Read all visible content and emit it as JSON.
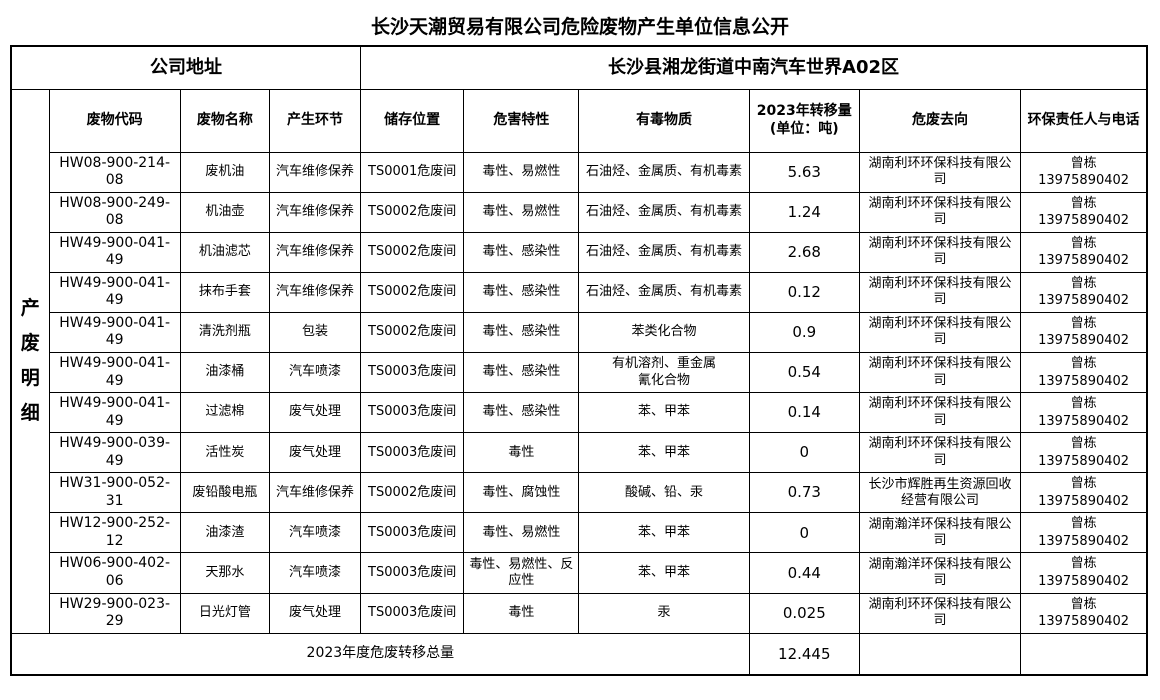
{
  "title": "长沙天潮贸易有限公司危险废物产生单位信息公开",
  "company": {
    "address_label": "公司地址",
    "address_value": "长沙县湘龙街道中南汽车世界A02区"
  },
  "side_label": "产废明细",
  "columns": {
    "code": "废物代码",
    "name": "废物名称",
    "stage": "产生环节",
    "storage": "储存位置",
    "hazard": "危害特性",
    "toxic": "有毒物质",
    "amount": "2023年转移量\n(单位：吨)",
    "destination": "危废去向",
    "contact": "环保责任人与电话"
  },
  "rows": [
    {
      "code": "HW08-900-214-08",
      "name": "废机油",
      "stage": "汽车维修保养",
      "storage": "TS0001危废间",
      "hazard": "毒性、易燃性",
      "toxic": "石油烃、金属质、有机毒素",
      "amount": "5.63",
      "destination": "湖南利环环保科技有限公司",
      "contact_name": "曾栋",
      "contact_phone": "13975890402"
    },
    {
      "code": "HW08-900-249-08",
      "name": "机油壶",
      "stage": "汽车维修保养",
      "storage": "TS0002危废间",
      "hazard": "毒性、易燃性",
      "toxic": "石油烃、金属质、有机毒素",
      "amount": "1.24",
      "destination": "湖南利环环保科技有限公司",
      "contact_name": "曾栋",
      "contact_phone": "13975890402"
    },
    {
      "code": "HW49-900-041-49",
      "name": "机油滤芯",
      "stage": "汽车维修保养",
      "storage": "TS0002危废间",
      "hazard": "毒性、感染性",
      "toxic": "石油烃、金属质、有机毒素",
      "amount": "2.68",
      "destination": "湖南利环环保科技有限公司",
      "contact_name": "曾栋",
      "contact_phone": "13975890402"
    },
    {
      "code": "HW49-900-041-49",
      "name": "抹布手套",
      "stage": "汽车维修保养",
      "storage": "TS0002危废间",
      "hazard": "毒性、感染性",
      "toxic": "石油烃、金属质、有机毒素",
      "amount": "0.12",
      "destination": "湖南利环环保科技有限公司",
      "contact_name": "曾栋",
      "contact_phone": "13975890402"
    },
    {
      "code": "HW49-900-041-49",
      "name": "清洗剂瓶",
      "stage": "包装",
      "storage": "TS0002危废间",
      "hazard": "毒性、感染性",
      "toxic": "苯类化合物",
      "amount": "0.9",
      "destination": "湖南利环环保科技有限公司",
      "contact_name": "曾栋",
      "contact_phone": "13975890402"
    },
    {
      "code": "HW49-900-041-49",
      "name": "油漆桶",
      "stage": "汽车喷漆",
      "storage": "TS0003危废间",
      "hazard": "毒性、感染性",
      "toxic": "有机溶剂、重金属\n氰化合物",
      "amount": "0.54",
      "destination": "湖南利环环保科技有限公司",
      "contact_name": "曾栋",
      "contact_phone": "13975890402"
    },
    {
      "code": "HW49-900-041-49",
      "name": "过滤棉",
      "stage": "废气处理",
      "storage": "TS0003危废间",
      "hazard": "毒性、感染性",
      "toxic": "苯、甲苯",
      "amount": "0.14",
      "destination": "湖南利环环保科技有限公司",
      "contact_name": "曾栋",
      "contact_phone": "13975890402"
    },
    {
      "code": "HW49-900-039-49",
      "name": "活性炭",
      "stage": "废气处理",
      "storage": "TS0003危废间",
      "hazard": "毒性",
      "toxic": "苯、甲苯",
      "amount": "0",
      "destination": "湖南利环环保科技有限公司",
      "contact_name": "曾栋",
      "contact_phone": "13975890402"
    },
    {
      "code": "HW31-900-052-31",
      "name": "废铅酸电瓶",
      "stage": "汽车维修保养",
      "storage": "TS0002危废间",
      "hazard": "毒性、腐蚀性",
      "toxic": "酸碱、铅、汞",
      "amount": "0.73",
      "destination": "长沙市辉胜再生资源回收经营有限公司",
      "contact_name": "曾栋",
      "contact_phone": "13975890402"
    },
    {
      "code": "HW12-900-252-12",
      "name": "油漆渣",
      "stage": "汽车喷漆",
      "storage": "TS0003危废间",
      "hazard": "毒性、易燃性",
      "toxic": "苯、甲苯",
      "amount": "0",
      "destination": "湖南瀚洋环保科技有限公司",
      "contact_name": "曾栋",
      "contact_phone": "13975890402"
    },
    {
      "code": "HW06-900-402-06",
      "name": "天那水",
      "stage": "汽车喷漆",
      "storage": "TS0003危废间",
      "hazard": "毒性、易燃性、反应性",
      "toxic": "苯、甲苯",
      "amount": "0.44",
      "destination": "湖南瀚洋环保科技有限公司",
      "contact_name": "曾栋",
      "contact_phone": "13975890402"
    },
    {
      "code": "HW29-900-023-29",
      "name": "日光灯管",
      "stage": "废气处理",
      "storage": "TS0003危废间",
      "hazard": "毒性",
      "toxic": "汞",
      "amount": "0.025",
      "destination": "湖南利环环保科技有限公司",
      "contact_name": "曾栋",
      "contact_phone": "13975890402"
    }
  ],
  "footer": {
    "label": "2023年度危废转移总量",
    "total": "12.445"
  }
}
